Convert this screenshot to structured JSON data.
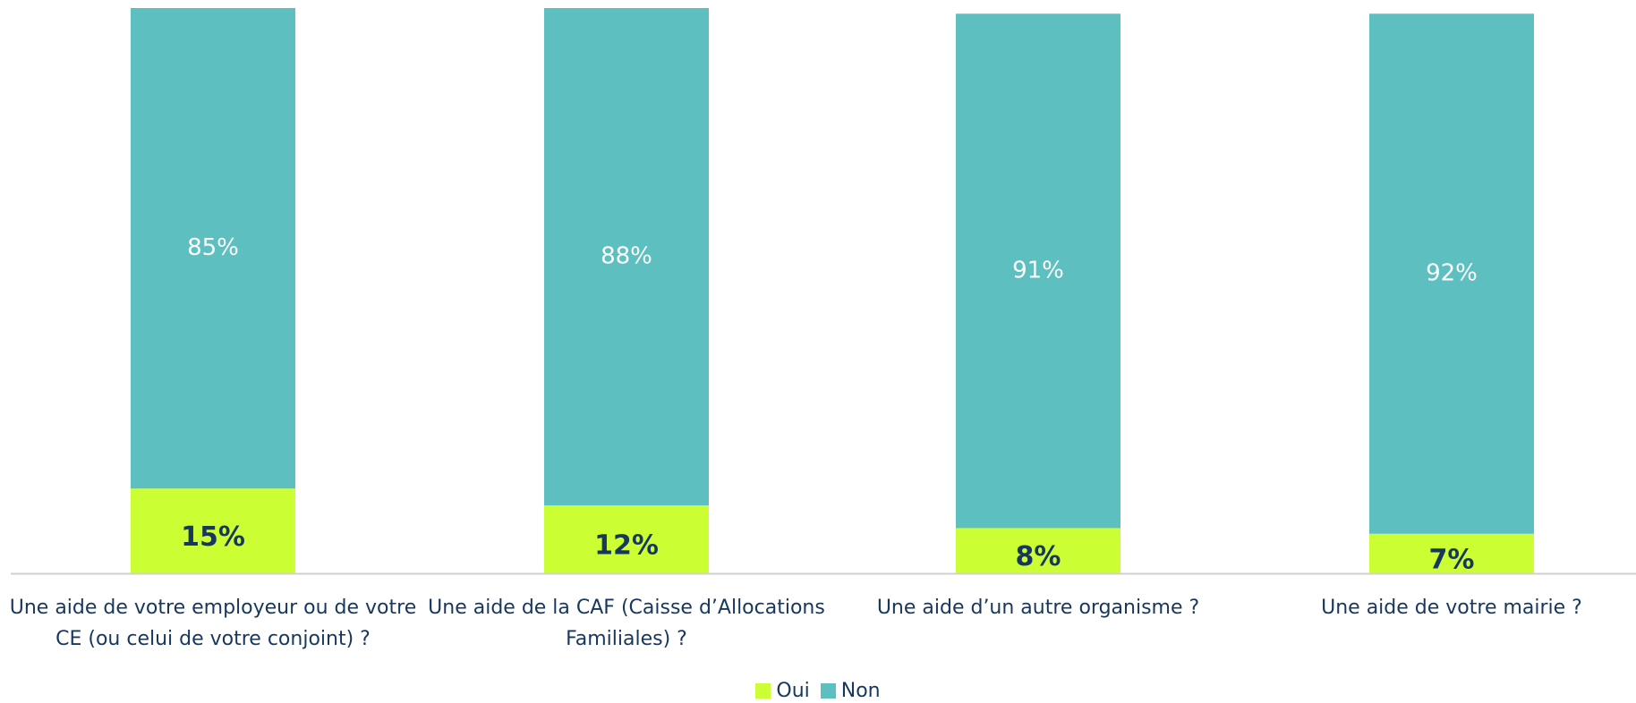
{
  "chart_data": {
    "type": "stacked_bar",
    "categories": [
      "Une aide de votre employeur ou de votre CE (ou celui de votre conjoint) ?",
      "Une aide de la CAF (Caisse d’Allocations Familiales) ?",
      "Une aide d’un autre organisme ?",
      "Une aide de votre mairie ?"
    ],
    "series": [
      {
        "name": "Oui",
        "color": "#ccff33",
        "values": [
          15,
          12,
          8,
          7
        ],
        "value_labels": [
          "15%",
          "12%",
          "8%",
          "7%"
        ]
      },
      {
        "name": "Non",
        "color": "#5dbfc0",
        "values": [
          85,
          88,
          91,
          92
        ],
        "value_labels": [
          "85%",
          "88%",
          "91%",
          "92%"
        ]
      }
    ],
    "ylim": [
      0,
      100
    ],
    "legend": "bottom"
  }
}
